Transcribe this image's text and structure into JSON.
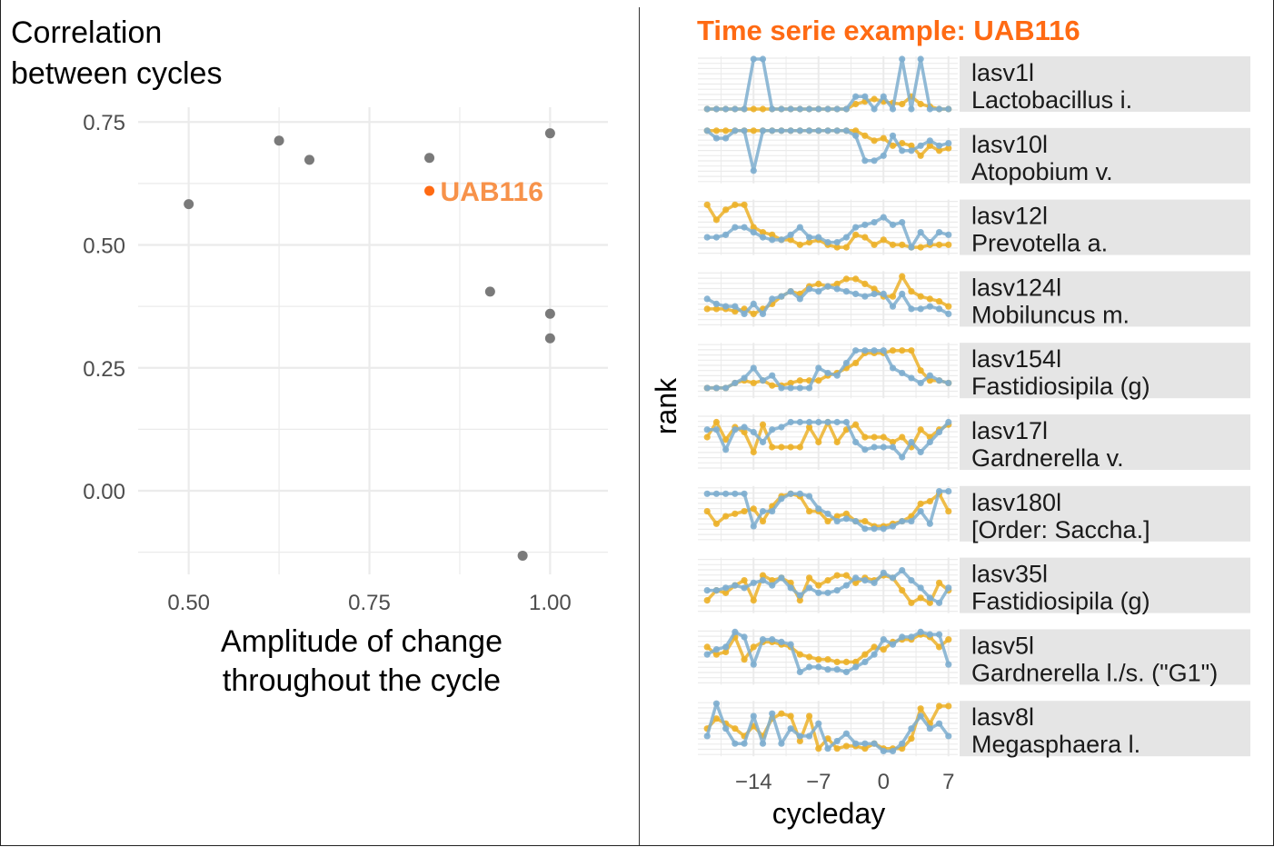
{
  "colors": {
    "point": "#7a7a7a",
    "highlight": "#ff6a13",
    "highlight_label": "#f7924a",
    "cycle_a": "#ecb12a",
    "cycle_b": "#7eaecf",
    "grid": "#ebebeb",
    "strip_bg": "#e5e5e5"
  },
  "chart_data": [
    {
      "type": "scatter",
      "title": "Correlation between cycles",
      "title_lines": [
        "Correlation",
        "between cycles"
      ],
      "xlabel": "Amplitude of change throughout the cycle",
      "xlabel_lines": [
        "Amplitude of change",
        "throughout the cycle"
      ],
      "ylabel": "",
      "xlim": [
        0.43,
        1.08
      ],
      "ylim": [
        -0.17,
        0.78
      ],
      "x_ticks": [
        "0.50",
        "0.75",
        "1.00"
      ],
      "y_ticks": [
        "0.75",
        "0.50",
        "0.25",
        "0.00"
      ],
      "grid": true,
      "points": [
        {
          "x": 0.5,
          "y": 0.583
        },
        {
          "x": 0.625,
          "y": 0.712
        },
        {
          "x": 0.667,
          "y": 0.673
        },
        {
          "x": 0.833,
          "y": 0.677
        },
        {
          "x": 1.0,
          "y": 0.727
        },
        {
          "x": 0.917,
          "y": 0.405
        },
        {
          "x": 1.0,
          "y": 0.36
        },
        {
          "x": 1.0,
          "y": 0.31
        },
        {
          "x": 0.962,
          "y": -0.132
        }
      ],
      "highlight": {
        "label": "UAB116",
        "x": 0.833,
        "y": 0.61
      }
    },
    {
      "type": "line",
      "title": "Time serie example: UAB116",
      "xlabel": "cycleday",
      "ylabel": "rank",
      "xlim": [
        -20,
        8
      ],
      "x_ticks": [
        "−14",
        "−7",
        "0",
        "7"
      ],
      "x": [
        -19,
        -18,
        -17,
        -16,
        -15,
        -14,
        -13,
        -12,
        -11,
        -10,
        -9,
        -8,
        -7,
        -6,
        -5,
        -4,
        -3,
        -2,
        -1,
        0,
        1,
        2,
        3,
        4,
        5,
        6,
        7
      ],
      "panels": [
        {
          "id": "lasv1l",
          "taxon": "Lactobacillus i.",
          "series": [
            {
              "values": [
                0,
                0,
                0,
                0,
                0,
                0,
                0,
                0,
                0,
                0,
                0,
                0,
                0,
                0,
                0,
                0,
                0.1,
                0.15,
                0.2,
                0.15,
                0.12,
                0.1,
                0.25,
                0.1,
                0.05,
                0,
                0
              ]
            },
            {
              "values": [
                0,
                0,
                0,
                0,
                0,
                1,
                1,
                0,
                0,
                0,
                0,
                0,
                0,
                0,
                0,
                0,
                0.25,
                0.25,
                0,
                0.25,
                0,
                1,
                0,
                1,
                0,
                0,
                0
              ]
            }
          ]
        },
        {
          "id": "lasv10l",
          "taxon": "Atopobium v.",
          "series": [
            {
              "values": [
                1,
                1,
                1,
                1,
                1,
                1,
                1,
                1,
                1,
                1,
                1,
                1,
                1,
                1,
                1,
                1,
                1,
                0.9,
                0.8,
                0.85,
                0.7,
                0.75,
                0.7,
                0.5,
                0.7,
                0.6,
                0.65
              ]
            },
            {
              "values": [
                1,
                0.85,
                0.85,
                1,
                1,
                0.2,
                1,
                1,
                1,
                1,
                1,
                1,
                1,
                1,
                1,
                1,
                0.9,
                0.4,
                0.4,
                0.5,
                0.9,
                0.6,
                0.6,
                0.7,
                0.8,
                0.7,
                0.75
              ]
            }
          ]
        },
        {
          "id": "lasv12l",
          "taxon": "Prevotella a.",
          "series": [
            {
              "values": [
                0.95,
                0.65,
                0.85,
                0.95,
                0.95,
                0.5,
                0.4,
                0.35,
                0.25,
                0.25,
                0.15,
                0.2,
                0.25,
                0.15,
                0.1,
                0.1,
                0.35,
                0.3,
                0.15,
                0.25,
                0.15,
                0.15,
                0.1,
                0.1,
                0.15,
                0.15,
                0.15
              ]
            },
            {
              "values": [
                0.3,
                0.3,
                0.35,
                0.5,
                0.5,
                0.4,
                0.3,
                0.25,
                0.25,
                0.35,
                0.5,
                0.3,
                0.3,
                0.2,
                0.2,
                0.3,
                0.5,
                0.55,
                0.6,
                0.7,
                0.55,
                0.6,
                0.1,
                0.4,
                0.2,
                0.4,
                0.35
              ]
            }
          ]
        },
        {
          "id": "lasv124l",
          "taxon": "Mobiluncus m.",
          "series": [
            {
              "values": [
                0.3,
                0.3,
                0.3,
                0.25,
                0.3,
                0.2,
                0.3,
                0.4,
                0.55,
                0.65,
                0.6,
                0.75,
                0.8,
                0.75,
                0.8,
                0.9,
                0.9,
                0.8,
                0.7,
                0.55,
                0.55,
                0.95,
                0.65,
                0.55,
                0.5,
                0.45,
                0.35
              ]
            },
            {
              "values": [
                0.5,
                0.4,
                0.35,
                0.35,
                0.2,
                0.4,
                0.2,
                0.5,
                0.55,
                0.65,
                0.5,
                0.7,
                0.65,
                0.75,
                0.7,
                0.65,
                0.6,
                0.55,
                0.6,
                0.6,
                0.35,
                0.6,
                0.3,
                0.3,
                0.35,
                0.3,
                0.2
              ]
            }
          ]
        },
        {
          "id": "lasv154l",
          "taxon": "Fastidiosipila (g)",
          "series": [
            {
              "values": [
                0.15,
                0.15,
                0.15,
                0.25,
                0.3,
                0.25,
                0.3,
                0.2,
                0.2,
                0.25,
                0.3,
                0.3,
                0.3,
                0.4,
                0.45,
                0.55,
                0.65,
                0.85,
                0.85,
                0.85,
                0.9,
                0.9,
                0.9,
                0.5,
                0.3,
                0.3,
                0.25
              ]
            },
            {
              "values": [
                0.15,
                0.15,
                0.15,
                0.25,
                0.35,
                0.55,
                0.3,
                0.4,
                0.15,
                0.15,
                0.15,
                0.15,
                0.55,
                0.45,
                0.4,
                0.65,
                0.9,
                0.9,
                0.9,
                0.9,
                0.55,
                0.45,
                0.35,
                0.25,
                0.4,
                0.3,
                0.25
              ]
            }
          ]
        },
        {
          "id": "lasv17l",
          "taxon": "Gardnerella v.",
          "series": [
            {
              "values": [
                0.6,
                0.9,
                0.55,
                0.8,
                0.7,
                0.3,
                0.85,
                0.4,
                0.4,
                0.4,
                0.4,
                0.8,
                0.5,
                0.9,
                0.5,
                0.75,
                0.85,
                0.6,
                0.6,
                0.6,
                0.5,
                0.6,
                0.4,
                0.75,
                0.6,
                0.75,
                0.85
              ]
            },
            {
              "values": [
                0.75,
                0.75,
                0.35,
                0.75,
                0.8,
                0.7,
                0.5,
                0.75,
                0.8,
                0.9,
                0.9,
                0.9,
                0.9,
                0.9,
                0.9,
                0.9,
                0.5,
                0.35,
                0.4,
                0.4,
                0.4,
                0.2,
                0.5,
                0.3,
                0.5,
                0.7,
                0.9
              ]
            }
          ]
        },
        {
          "id": "lasv180l",
          "taxon": "[Order: Saccha.]",
          "series": [
            {
              "values": [
                0.55,
                0.3,
                0.45,
                0.5,
                0.55,
                0.6,
                0.35,
                0.65,
                0.85,
                0.9,
                0.85,
                0.55,
                0.55,
                0.35,
                0.45,
                0.5,
                0.35,
                0.35,
                0.25,
                0.25,
                0.3,
                0.35,
                0.45,
                0.7,
                0.75,
                0.9,
                0.55
              ]
            },
            {
              "values": [
                0.9,
                0.9,
                0.9,
                0.9,
                0.9,
                0.25,
                0.55,
                0.55,
                0.8,
                0.9,
                0.9,
                0.85,
                0.6,
                0.5,
                0.35,
                0.4,
                0.35,
                0.2,
                0.2,
                0.2,
                0.25,
                0.35,
                0.35,
                0.55,
                0.3,
                0.95,
                0.95
              ]
            }
          ]
        },
        {
          "id": "lasv35l",
          "taxon": "Fastidiosipila (g)",
          "series": [
            {
              "values": [
                0.2,
                0.4,
                0.35,
                0.5,
                0.6,
                0.2,
                0.7,
                0.6,
                0.65,
                0.55,
                0.2,
                0.65,
                0.5,
                0.6,
                0.7,
                0.7,
                0.55,
                0.65,
                0.6,
                0.7,
                0.65,
                0.4,
                0.15,
                0.25,
                0.15,
                0.55,
                0.4
              ]
            },
            {
              "values": [
                0.4,
                0.4,
                0.45,
                0.5,
                0.45,
                0.55,
                0.6,
                0.5,
                0.65,
                0.45,
                0.3,
                0.45,
                0.35,
                0.35,
                0.4,
                0.5,
                0.65,
                0.6,
                0.55,
                0.75,
                0.65,
                0.8,
                0.6,
                0.45,
                0.25,
                0.15,
                0.45
              ]
            }
          ]
        },
        {
          "id": "lasv5l",
          "taxon": "Gardnerella l./s. (\"G1\")",
          "series": [
            {
              "values": [
                0.7,
                0.55,
                0.6,
                0.9,
                0.45,
                0.7,
                0.8,
                0.8,
                0.75,
                0.7,
                0.55,
                0.5,
                0.45,
                0.45,
                0.4,
                0.4,
                0.4,
                0.55,
                0.7,
                0.65,
                0.8,
                0.85,
                0.85,
                0.95,
                0.9,
                0.7,
                0.85
              ]
            },
            {
              "values": [
                0.55,
                0.65,
                0.7,
                1.0,
                0.9,
                0.35,
                0.85,
                0.85,
                0.8,
                0.75,
                0.2,
                0.3,
                0.3,
                0.25,
                0.25,
                0.2,
                0.3,
                0.4,
                0.55,
                0.85,
                0.75,
                0.9,
                0.9,
                1.0,
                0.95,
                0.95,
                0.35
              ]
            }
          ]
        },
        {
          "id": "lasv8l",
          "taxon": "Megasphaera l.",
          "series": [
            {
              "values": [
                0.5,
                0.7,
                0.6,
                0.5,
                0.35,
                0.55,
                0.35,
                0.7,
                0.8,
                0.75,
                0.25,
                0.75,
                0.1,
                0.3,
                0.1,
                0.15,
                0.15,
                0.1,
                0.2,
                0.1,
                0.1,
                0.1,
                0.3,
                0.9,
                0.6,
                0.95,
                0.95
              ]
            },
            {
              "values": [
                0.35,
                1.0,
                0.5,
                0.2,
                0.2,
                0.75,
                0.2,
                0.8,
                0.2,
                0.5,
                0.35,
                0.35,
                0.6,
                0.1,
                0.25,
                0.4,
                0.2,
                0.2,
                0.2,
                0.05,
                0.05,
                0.2,
                0.5,
                0.75,
                0.5,
                0.6,
                0.35
              ]
            }
          ]
        }
      ]
    }
  ]
}
